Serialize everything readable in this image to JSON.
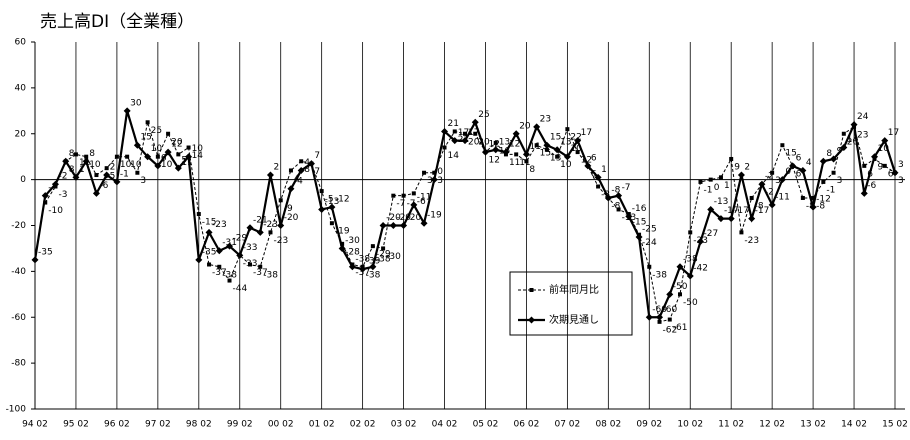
{
  "chart_data": {
    "type": "line",
    "title": "売上高DI（全業種）",
    "categories": [
      "94 02",
      null,
      null,
      null,
      "95 02",
      null,
      null,
      null,
      "96 02",
      null,
      null,
      null,
      "97 02",
      null,
      null,
      null,
      "98 02",
      null,
      null,
      null,
      "99 02",
      null,
      null,
      null,
      "00 02",
      null,
      null,
      null,
      "01 02",
      null,
      null,
      null,
      "02 02",
      null,
      null,
      null,
      "03 02",
      null,
      null,
      null,
      "04 02",
      null,
      null,
      null,
      "05 02",
      null,
      null,
      null,
      "06 02",
      null,
      null,
      null,
      "07 02",
      null,
      null,
      null,
      "08 02",
      null,
      null,
      null,
      "09 02",
      null,
      null,
      null,
      "10 02",
      null,
      null,
      null,
      "11 02",
      null,
      null,
      null,
      "12 02",
      null,
      null,
      null,
      "13 02",
      null,
      null,
      null,
      "14 02",
      null,
      null,
      null,
      "15 02"
    ],
    "series": [
      {
        "name": "前年同月比",
        "color": "#000000",
        "values": [
          null,
          -10,
          -3,
          8,
          11,
          10,
          2,
          5,
          10,
          10,
          3,
          25,
          10,
          20,
          11,
          14,
          -15,
          -37,
          -38,
          -44,
          -33,
          -37,
          -38,
          -23,
          -9,
          4,
          8,
          7,
          -5,
          -19,
          -28,
          -37,
          -38,
          -29,
          -30,
          -7,
          -7,
          -6,
          3,
          3,
          14,
          21,
          20,
          20,
          12,
          16,
          11,
          11,
          8,
          15,
          13,
          10,
          22,
          12,
          6,
          -3,
          -8,
          -13,
          -15,
          -24,
          -38,
          -62,
          -61,
          -50,
          -23,
          -1,
          0,
          1,
          9,
          -23,
          -8,
          -2,
          3,
          15,
          6,
          -8,
          -8,
          -1,
          3,
          20,
          23,
          6,
          9,
          6,
          3
        ]
      },
      {
        "name": "次期見通し",
        "color": "#000000",
        "values": [
          -35,
          -7,
          -2,
          8,
          1,
          8,
          -6,
          2,
          -1,
          30,
          15,
          10,
          6,
          12,
          5,
          10,
          -35,
          -23,
          -31,
          -29,
          -33,
          -21,
          -23,
          2,
          -20,
          -4,
          4,
          7,
          -13,
          -12,
          -30,
          -38,
          -39,
          -38,
          -20,
          -20,
          -20,
          -11,
          -19,
          0,
          21,
          17,
          17,
          25,
          12,
          13,
          12,
          20,
          11,
          23,
          15,
          13,
          10,
          17,
          6,
          1,
          -8,
          -7,
          -16,
          -25,
          -60,
          -60,
          -50,
          -38,
          -42,
          -27,
          -13,
          -17,
          -17,
          2,
          -17,
          -2,
          -11,
          0,
          6,
          4,
          -12,
          8,
          9,
          14,
          24,
          -6,
          10,
          17,
          3
        ]
      }
    ],
    "ylim": [
      -100,
      60
    ],
    "yticks": [
      -100,
      -80,
      -60,
      -40,
      -20,
      0,
      20,
      40,
      60
    ]
  }
}
